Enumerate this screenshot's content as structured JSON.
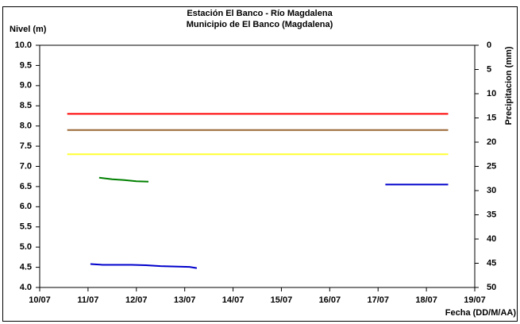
{
  "chart_data": {
    "type": "line",
    "title": "Estación El Banco - Río Magdalena",
    "subtitle": "Municipio de El Banco (Magdalena)",
    "y_label": "Nivel (m)",
    "y2_label": "Precipitacion (mm)",
    "x_label": "Fecha (DD/M/AA)",
    "xlim": [
      10,
      19
    ],
    "xticks": [
      {
        "value": 10,
        "label": "10/07"
      },
      {
        "value": 11,
        "label": "11/07"
      },
      {
        "value": 12,
        "label": "12/07"
      },
      {
        "value": 13,
        "label": "13/07"
      },
      {
        "value": 14,
        "label": "14/07"
      },
      {
        "value": 15,
        "label": "15/07"
      },
      {
        "value": 16,
        "label": "16/07"
      },
      {
        "value": 17,
        "label": "17/07"
      },
      {
        "value": 18,
        "label": "18/07"
      },
      {
        "value": 19,
        "label": "19/07"
      }
    ],
    "ylim": [
      4,
      10
    ],
    "yticks": [
      {
        "value": 4,
        "label": "4.0"
      },
      4.5,
      {
        "value": 5,
        "label": "5.0"
      },
      5.5,
      {
        "value": 6,
        "label": "6.0"
      },
      6.5,
      {
        "value": 7,
        "label": "7.0"
      },
      7.5,
      {
        "value": 8,
        "label": "8.0"
      },
      8.5,
      {
        "value": 9,
        "label": "9.0"
      },
      9.5,
      {
        "value": 10,
        "label": "10.0"
      }
    ],
    "y2lim": [
      50,
      0
    ],
    "y2ticks": [
      0,
      5,
      10,
      15,
      20,
      25,
      30,
      35,
      40,
      45,
      50
    ],
    "series": [
      {
        "color": "#ff0000",
        "x": [
          10.57,
          18.45
        ],
        "values": [
          8.3,
          8.3
        ]
      },
      {
        "color": "#996633",
        "x": [
          10.57,
          18.45
        ],
        "values": [
          7.9,
          7.9
        ]
      },
      {
        "color": "#ffff33",
        "x": [
          10.57,
          18.45
        ],
        "values": [
          7.3,
          7.3
        ]
      },
      {
        "color": "#008000",
        "x": [
          11.23,
          11.5,
          11.75,
          12.0,
          12.25
        ],
        "values": [
          6.72,
          6.68,
          6.66,
          6.63,
          6.62
        ]
      },
      {
        "color": "#0000cc",
        "x": [
          11.05,
          11.3,
          11.6,
          11.9,
          12.2,
          12.5,
          12.8,
          13.1,
          13.25
        ],
        "values": [
          4.58,
          4.56,
          4.56,
          4.56,
          4.55,
          4.53,
          4.52,
          4.51,
          4.48
        ]
      },
      {
        "color": "#0000cc",
        "x": [
          17.15,
          18.45
        ],
        "values": [
          6.55,
          6.55
        ]
      }
    ]
  }
}
